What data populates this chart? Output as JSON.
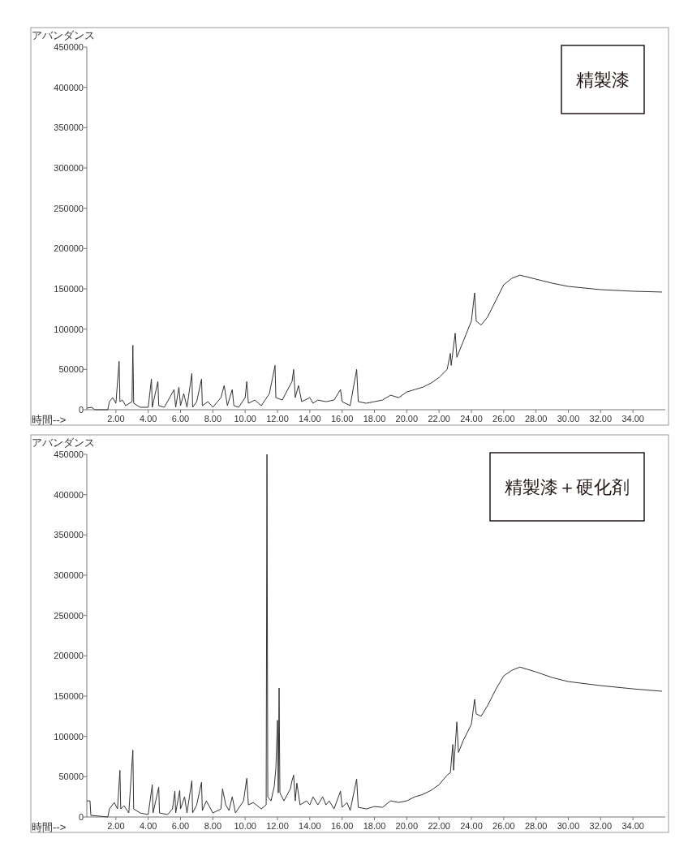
{
  "chart_data": [
    {
      "type": "line",
      "xlabel": "時間-->",
      "ylabel": "アバンダンス",
      "annotations": [
        "精製漆"
      ],
      "color": "#333333",
      "xlim": [
        0.2,
        36
      ],
      "ylim": [
        0,
        450000
      ],
      "xticks": [
        {
          "value": 2,
          "label": "2.00"
        },
        {
          "value": 4,
          "label": "4.00"
        },
        {
          "value": 6,
          "label": "6.00"
        },
        {
          "value": 8,
          "label": "8.00"
        },
        {
          "value": 10,
          "label": "10.00"
        },
        {
          "value": 12,
          "label": "12.00"
        },
        {
          "value": 14,
          "label": "14.00"
        },
        {
          "value": 16,
          "label": "16.00"
        },
        {
          "value": 18,
          "label": "18.00"
        },
        {
          "value": 20,
          "label": "20.00"
        },
        {
          "value": 22,
          "label": "22.00"
        },
        {
          "value": 24,
          "label": "24.00"
        },
        {
          "value": 26,
          "label": "26.00"
        },
        {
          "value": 28,
          "label": "28.00"
        },
        {
          "value": 30,
          "label": "30.00"
        },
        {
          "value": 32,
          "label": "32.00"
        },
        {
          "value": 34,
          "label": "34.00"
        }
      ],
      "yticks": [
        0,
        50000,
        100000,
        150000,
        200000,
        250000,
        300000,
        350000,
        400000,
        450000
      ],
      "x": [
        0.2,
        0.5,
        0.7,
        1.5,
        1.6,
        1.8,
        2.0,
        2.2,
        2.25,
        2.4,
        2.6,
        3.0,
        3.05,
        3.1,
        3.5,
        4.0,
        4.2,
        4.25,
        4.6,
        4.65,
        5.0,
        5.6,
        5.7,
        5.9,
        6.0,
        6.2,
        6.4,
        6.7,
        6.75,
        7.0,
        7.3,
        7.35,
        7.7,
        8.0,
        8.5,
        8.7,
        8.9,
        9.2,
        9.3,
        9.6,
        10.0,
        10.1,
        10.2,
        10.6,
        11.0,
        11.5,
        11.7,
        11.85,
        11.9,
        12.3,
        12.5,
        12.9,
        13.0,
        13.1,
        13.3,
        13.5,
        14.0,
        14.2,
        14.5,
        15.0,
        15.5,
        15.9,
        16.0,
        16.5,
        16.9,
        17.0,
        17.5,
        18.0,
        18.5,
        19.0,
        19.5,
        20.0,
        20.5,
        21.0,
        21.5,
        22.0,
        22.5,
        22.7,
        22.75,
        23.0,
        23.1,
        23.5,
        24.0,
        24.2,
        24.3,
        24.6,
        25.0,
        25.5,
        26.0,
        26.5,
        27.0,
        28.0,
        29.0,
        30.0,
        32.0,
        34.0,
        35.8
      ],
      "values": [
        2000,
        3000,
        0,
        0,
        10000,
        15000,
        8000,
        60000,
        10000,
        12000,
        5000,
        10000,
        80000,
        8000,
        3000,
        3000,
        38000,
        3000,
        35000,
        5000,
        3000,
        25000,
        3000,
        28000,
        5000,
        20000,
        3000,
        45000,
        3000,
        10000,
        38000,
        5000,
        10000,
        3000,
        15000,
        30000,
        5000,
        25000,
        5000,
        3000,
        15000,
        35000,
        8000,
        12000,
        5000,
        20000,
        40000,
        55000,
        15000,
        12000,
        20000,
        35000,
        50000,
        15000,
        30000,
        10000,
        15000,
        8000,
        12000,
        10000,
        12000,
        25000,
        10000,
        5000,
        50000,
        10000,
        8000,
        10000,
        12000,
        18000,
        15000,
        22000,
        25000,
        28000,
        33000,
        40000,
        50000,
        70000,
        55000,
        95000,
        65000,
        85000,
        110000,
        145000,
        110000,
        105000,
        115000,
        135000,
        155000,
        163000,
        167000,
        162000,
        157000,
        153000,
        149000,
        147000,
        146000
      ]
    },
    {
      "type": "line",
      "xlabel": "時間-->",
      "ylabel": "アバンダンス",
      "annotations": [
        "精製漆＋硬化剤"
      ],
      "color": "#333333",
      "xlim": [
        0.2,
        36
      ],
      "ylim": [
        0,
        450000
      ],
      "xticks": [
        {
          "value": 2,
          "label": "2.00"
        },
        {
          "value": 4,
          "label": "4.00"
        },
        {
          "value": 6,
          "label": "6.00"
        },
        {
          "value": 8,
          "label": "8.00"
        },
        {
          "value": 10,
          "label": "10.00"
        },
        {
          "value": 12,
          "label": "12.00"
        },
        {
          "value": 14,
          "label": "14.00"
        },
        {
          "value": 16,
          "label": "16.00"
        },
        {
          "value": 18,
          "label": "18.00"
        },
        {
          "value": 20,
          "label": "20.00"
        },
        {
          "value": 22,
          "label": "22.00"
        },
        {
          "value": 24,
          "label": "24.00"
        },
        {
          "value": 26,
          "label": "26.00"
        },
        {
          "value": 28,
          "label": "28.00"
        },
        {
          "value": 30,
          "label": "30.00"
        },
        {
          "value": 32,
          "label": "32.00"
        },
        {
          "value": 34,
          "label": "34.00"
        }
      ],
      "yticks": [
        0,
        50000,
        100000,
        150000,
        200000,
        250000,
        300000,
        350000,
        400000,
        450000
      ],
      "x": [
        0.2,
        0.4,
        0.45,
        1.5,
        1.6,
        1.9,
        2.1,
        2.25,
        2.3,
        2.5,
        2.8,
        3.05,
        3.1,
        3.5,
        4.0,
        4.25,
        4.3,
        4.65,
        4.7,
        5.2,
        5.5,
        5.65,
        5.7,
        5.95,
        6.0,
        6.25,
        6.4,
        6.7,
        6.75,
        7.0,
        7.3,
        7.35,
        7.6,
        8.0,
        8.5,
        8.6,
        8.8,
        9.0,
        9.2,
        9.4,
        9.9,
        10.1,
        10.2,
        10.5,
        11.0,
        11.3,
        11.35,
        11.4,
        11.6,
        11.8,
        11.9,
        12.0,
        12.05,
        12.1,
        12.15,
        12.4,
        12.8,
        12.9,
        13.0,
        13.1,
        13.2,
        13.4,
        13.8,
        14.0,
        14.2,
        14.5,
        14.8,
        15.0,
        15.2,
        15.5,
        15.9,
        16.0,
        16.3,
        16.5,
        16.9,
        17.0,
        17.5,
        18.0,
        18.5,
        19.0,
        19.5,
        20.0,
        20.5,
        21.0,
        21.5,
        22.0,
        22.5,
        22.7,
        22.85,
        22.9,
        23.1,
        23.2,
        23.5,
        24.0,
        24.2,
        24.3,
        24.6,
        25.0,
        25.5,
        26.0,
        26.5,
        27.0,
        28.0,
        29.0,
        30.0,
        32.0,
        34.0,
        35.8
      ],
      "values": [
        20000,
        20000,
        2000,
        0,
        10000,
        18000,
        10000,
        58000,
        10000,
        14000,
        5000,
        83000,
        10000,
        5000,
        3000,
        40000,
        5000,
        37000,
        5000,
        3000,
        10000,
        32000,
        5000,
        33000,
        10000,
        25000,
        5000,
        45000,
        5000,
        15000,
        43000,
        8000,
        20000,
        5000,
        10000,
        35000,
        15000,
        8000,
        25000,
        5000,
        20000,
        48000,
        15000,
        18000,
        10000,
        15000,
        450000,
        25000,
        20000,
        38000,
        60000,
        120000,
        30000,
        160000,
        30000,
        20000,
        35000,
        45000,
        52000,
        20000,
        42000,
        15000,
        20000,
        15000,
        25000,
        15000,
        25000,
        15000,
        20000,
        10000,
        32000,
        12000,
        18000,
        8000,
        47000,
        12000,
        10000,
        13000,
        12000,
        20000,
        18000,
        20000,
        25000,
        28000,
        33000,
        40000,
        52000,
        55000,
        90000,
        58000,
        118000,
        80000,
        95000,
        115000,
        146000,
        128000,
        125000,
        138000,
        158000,
        175000,
        182000,
        186000,
        180000,
        173000,
        168000,
        163000,
        159000,
        156000
      ]
    }
  ]
}
